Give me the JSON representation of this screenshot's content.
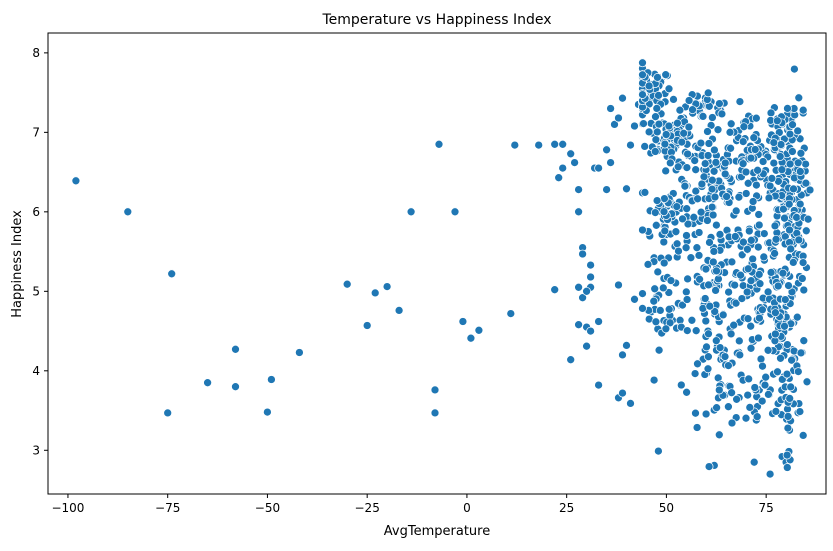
{
  "chart_data": {
    "type": "scatter",
    "title": "Temperature vs Happiness Index",
    "xlabel": "AvgTemperature",
    "ylabel": "Happiness Index",
    "xlim": [
      -105,
      90
    ],
    "ylim": [
      2.45,
      8.25
    ],
    "xticks": [
      -100,
      -75,
      -50,
      -25,
      0,
      25,
      50,
      75
    ],
    "yticks": [
      3,
      4,
      5,
      6,
      7,
      8
    ],
    "xtick_labels": [
      "−100",
      "−75",
      "−50",
      "−25",
      "0",
      "25",
      "50",
      "75"
    ],
    "ytick_labels": [
      "3",
      "4",
      "5",
      "6",
      "7",
      "8"
    ],
    "grid": false,
    "marker_color": "#1f77b4",
    "outliers": [
      [
        -98,
        6.39
      ],
      [
        -85,
        6.0
      ],
      [
        -74,
        5.22
      ],
      [
        -75,
        3.47
      ],
      [
        -65,
        3.85
      ],
      [
        -58,
        4.27
      ],
      [
        -58,
        3.8
      ],
      [
        -50,
        3.48
      ],
      [
        -49,
        3.89
      ],
      [
        -42,
        4.23
      ],
      [
        -30,
        5.09
      ],
      [
        -25,
        4.57
      ],
      [
        -23,
        4.98
      ],
      [
        -20,
        5.06
      ],
      [
        -17,
        4.76
      ],
      [
        -14,
        6.0
      ],
      [
        -7,
        6.85
      ],
      [
        -8,
        3.76
      ],
      [
        -8,
        3.47
      ],
      [
        -3,
        6.0
      ],
      [
        -1,
        4.62
      ],
      [
        1,
        4.41
      ],
      [
        3,
        4.51
      ],
      [
        11,
        4.72
      ],
      [
        12,
        6.84
      ],
      [
        18,
        6.84
      ],
      [
        22,
        6.85
      ],
      [
        24,
        6.85
      ],
      [
        22,
        5.02
      ],
      [
        23,
        6.43
      ],
      [
        24,
        6.55
      ],
      [
        26,
        6.73
      ],
      [
        26,
        4.14
      ],
      [
        27,
        6.62
      ],
      [
        28,
        6.28
      ],
      [
        28,
        6.0
      ],
      [
        29,
        5.55
      ],
      [
        29,
        5.47
      ],
      [
        28,
        5.05
      ],
      [
        29,
        4.92
      ],
      [
        28,
        4.58
      ],
      [
        30,
        4.55
      ],
      [
        30,
        4.31
      ],
      [
        31,
        4.5
      ],
      [
        31,
        5.05
      ],
      [
        31,
        5.33
      ],
      [
        31,
        5.18
      ],
      [
        30,
        5.0
      ],
      [
        33,
        4.62
      ],
      [
        33,
        3.82
      ],
      [
        32,
        6.55
      ],
      [
        33,
        6.55
      ],
      [
        35,
        6.78
      ],
      [
        35,
        6.28
      ],
      [
        36,
        6.62
      ],
      [
        38,
        5.08
      ],
      [
        38,
        3.66
      ],
      [
        39,
        4.2
      ],
      [
        39,
        3.72
      ],
      [
        40,
        4.32
      ],
      [
        41,
        3.59
      ],
      [
        40,
        6.29
      ],
      [
        42,
        4.9
      ],
      [
        36,
        7.3
      ],
      [
        37,
        7.1
      ],
      [
        38,
        7.18
      ],
      [
        39,
        7.43
      ],
      [
        41,
        6.84
      ],
      [
        42,
        7.08
      ],
      [
        43,
        7.35
      ],
      [
        48,
        2.99
      ],
      [
        62,
        2.81
      ],
      [
        72,
        2.85
      ],
      [
        76,
        2.7
      ],
      [
        79,
        2.92
      ],
      [
        80,
        2.85
      ],
      [
        81,
        2.88
      ]
    ],
    "clusters": [
      {
        "n": 80,
        "cx": 45,
        "sx": 3.2,
        "cy": 7.5,
        "sy": 0.15
      },
      {
        "n": 30,
        "cx": 60,
        "sx": 3.0,
        "cy": 7.3,
        "sy": 0.08
      },
      {
        "n": 60,
        "cx": 50,
        "sx": 2.5,
        "cy": 6.95,
        "sy": 0.15
      },
      {
        "n": 60,
        "cx": 50,
        "sx": 3.0,
        "cy": 5.95,
        "sy": 0.25
      },
      {
        "n": 45,
        "cx": 50,
        "sx": 3.0,
        "cy": 4.9,
        "sy": 0.3
      },
      {
        "n": 40,
        "cx": 55,
        "sx": 2.5,
        "cy": 6.7,
        "sy": 0.3
      },
      {
        "n": 85,
        "cx": 62,
        "sx": 3.5,
        "cy": 6.35,
        "sy": 0.35
      },
      {
        "n": 100,
        "cx": 63,
        "sx": 3.5,
        "cy": 5.0,
        "sy": 0.5
      },
      {
        "n": 35,
        "cx": 63,
        "sx": 4.0,
        "cy": 3.8,
        "sy": 0.25
      },
      {
        "n": 70,
        "cx": 71,
        "sx": 3.0,
        "cy": 6.6,
        "sy": 0.35
      },
      {
        "n": 70,
        "cx": 72,
        "sx": 3.0,
        "cy": 5.1,
        "sy": 0.55
      },
      {
        "n": 25,
        "cx": 72,
        "sx": 3.0,
        "cy": 3.7,
        "sy": 0.25
      },
      {
        "n": 120,
        "cx": 80,
        "sx": 2.2,
        "cy": 6.2,
        "sy": 0.4
      },
      {
        "n": 110,
        "cx": 79,
        "sx": 2.2,
        "cy": 4.7,
        "sy": 0.5
      },
      {
        "n": 30,
        "cx": 80,
        "sx": 2.0,
        "cy": 7.1,
        "sy": 0.12
      },
      {
        "n": 30,
        "cx": 80,
        "sx": 2.0,
        "cy": 3.5,
        "sy": 0.3
      },
      {
        "n": 30,
        "cx": 84,
        "sx": 1.2,
        "cy": 6.0,
        "sy": 0.8
      }
    ]
  }
}
